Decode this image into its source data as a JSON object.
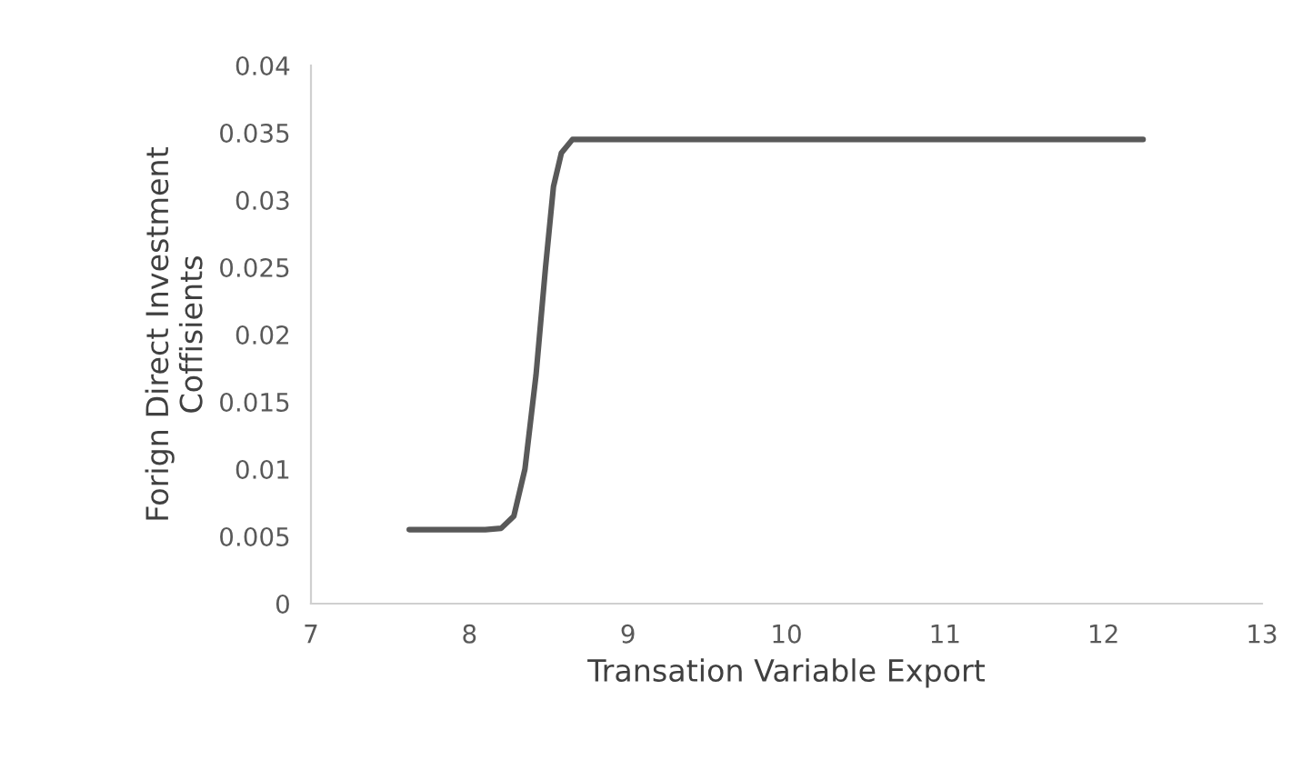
{
  "chart_data": {
    "type": "line",
    "xlabel": "Transation Variable Export",
    "ylabel": "Forign Direct Investment\nCoffisients",
    "series": [
      {
        "color": "#595959",
        "x": [
          7.62,
          8.1,
          8.2,
          8.28,
          8.35,
          8.42,
          8.48,
          8.53,
          8.58,
          8.65,
          9.0,
          12.25
        ],
        "values": [
          0.0055,
          0.0055,
          0.0056,
          0.0065,
          0.01,
          0.017,
          0.025,
          0.031,
          0.0335,
          0.0345,
          0.0345,
          0.0345
        ]
      }
    ],
    "xlim": [
      7,
      13
    ],
    "xticks": [
      7,
      8,
      9,
      10,
      11,
      12,
      13
    ],
    "ylim": [
      0,
      0.04
    ],
    "yticks": [
      {
        "value": 0,
        "label": "0"
      },
      0.005,
      0.01,
      0.015,
      0.02,
      0.025,
      0.03,
      0.035,
      0.04
    ],
    "grid": false,
    "marker": "none",
    "line_style": "solid",
    "legend": false
  }
}
